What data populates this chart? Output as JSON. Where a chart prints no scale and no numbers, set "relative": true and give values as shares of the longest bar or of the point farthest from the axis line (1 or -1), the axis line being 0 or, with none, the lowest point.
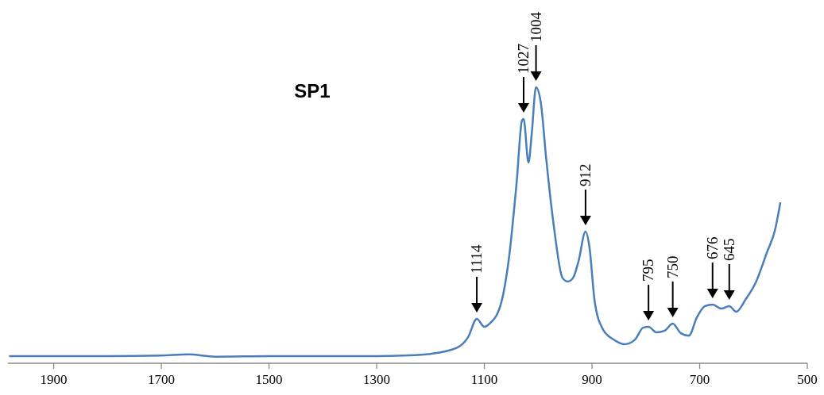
{
  "chart_data": {
    "type": "line",
    "title": "SP1",
    "relative": true,
    "xlim": [
      1985,
      500
    ],
    "xticks": [
      1900,
      1700,
      1500,
      1300,
      1100,
      900,
      700,
      500
    ],
    "grid": false,
    "marker": "none",
    "line_style": "solid",
    "annotations": [
      {
        "text": "1114",
        "x": 1114,
        "y": 0.161
      },
      {
        "text": "1027",
        "x": 1027,
        "y": 0.885
      },
      {
        "text": "1004",
        "x": 1004,
        "y": 1
      },
      {
        "text": "912",
        "x": 912,
        "y": 0.477
      },
      {
        "text": "795",
        "x": 795,
        "y": 0.132
      },
      {
        "text": "750",
        "x": 750,
        "y": 0.144
      },
      {
        "text": "676",
        "x": 676,
        "y": 0.213
      },
      {
        "text": "645",
        "x": 645,
        "y": 0.207
      }
    ],
    "series": [
      {
        "color": "#4a7ebb",
        "x": [
          1983,
          1900,
          1800,
          1700,
          1650,
          1600,
          1500,
          1400,
          1300,
          1250,
          1200,
          1150,
          1130,
          1114,
          1100,
          1090,
          1070,
          1055,
          1040,
          1030,
          1027,
          1018,
          1012,
          1004,
          995,
          985,
          970,
          955,
          945,
          935,
          925,
          912,
          905,
          895,
          880,
          860,
          840,
          820,
          805,
          795,
          780,
          765,
          750,
          735,
          720,
          705,
          690,
          676,
          660,
          645,
          632,
          615,
          595,
          575,
          560,
          550
        ],
        "values": [
          0.026,
          0.026,
          0.026,
          0.028,
          0.032,
          0.024,
          0.026,
          0.026,
          0.026,
          0.028,
          0.034,
          0.057,
          0.095,
          0.161,
          0.132,
          0.144,
          0.21,
          0.37,
          0.655,
          0.88,
          0.885,
          0.727,
          0.83,
          1,
          0.943,
          0.74,
          0.483,
          0.31,
          0.296,
          0.31,
          0.37,
          0.477,
          0.425,
          0.224,
          0.124,
          0.086,
          0.069,
          0.086,
          0.129,
          0.132,
          0.112,
          0.118,
          0.144,
          0.109,
          0.1,
          0.167,
          0.207,
          0.213,
          0.198,
          0.207,
          0.187,
          0.23,
          0.296,
          0.402,
          0.483,
          0.583
        ]
      }
    ]
  }
}
